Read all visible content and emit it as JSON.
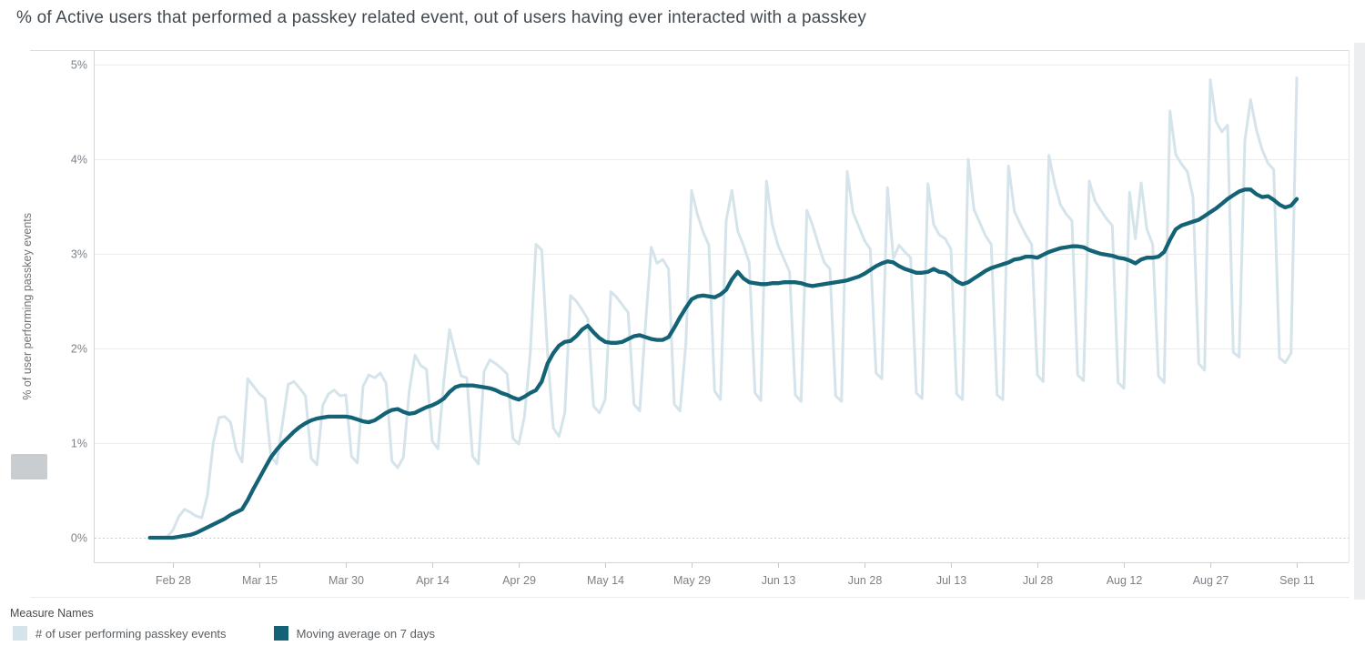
{
  "chart_data": {
    "type": "line",
    "title": "% of Active users that performed a passkey related event, out of users having ever interacted with a passkey",
    "ylabel": "% of user performing passkey events",
    "ylim": [
      0,
      5
    ],
    "grid": "horizontal",
    "y_ticks": [
      {
        "label": "0%",
        "value": 0
      },
      {
        "label": "1%",
        "value": 1
      },
      {
        "label": "2%",
        "value": 2
      },
      {
        "label": "3%",
        "value": 3
      },
      {
        "label": "4%",
        "value": 4
      },
      {
        "label": "5%",
        "value": 5
      }
    ],
    "x_domain": {
      "start": "Feb 24",
      "end": "Sep 11",
      "unit": "day",
      "points": 200
    },
    "x_ticks": [
      {
        "label": "Feb 28",
        "day_index": 4
      },
      {
        "label": "Mar 15",
        "day_index": 19
      },
      {
        "label": "Mar 30",
        "day_index": 34
      },
      {
        "label": "Apr 14",
        "day_index": 49
      },
      {
        "label": "Apr 29",
        "day_index": 64
      },
      {
        "label": "May 14",
        "day_index": 79
      },
      {
        "label": "May 29",
        "day_index": 94
      },
      {
        "label": "Jun 13",
        "day_index": 109
      },
      {
        "label": "Jun 28",
        "day_index": 124
      },
      {
        "label": "Jul 13",
        "day_index": 139
      },
      {
        "label": "Jul 28",
        "day_index": 154
      },
      {
        "label": "Aug 12",
        "day_index": 169
      },
      {
        "label": "Aug 27",
        "day_index": 184
      },
      {
        "label": "Sep 11",
        "day_index": 199
      }
    ],
    "legend": {
      "title": "Measure Names",
      "position": "bottom-left"
    },
    "series": [
      {
        "name": "# of user performing passkey events",
        "color": "#d5e4ea",
        "stroke_width": 3,
        "values": [
          0,
          0,
          0,
          0.01,
          0.08,
          0.22,
          0.3,
          0.27,
          0.23,
          0.21,
          0.45,
          1,
          1.27,
          1.28,
          1.22,
          0.92,
          0.8,
          1.68,
          1.6,
          1.52,
          1.47,
          0.86,
          0.78,
          1.2,
          1.62,
          1.65,
          1.58,
          1.5,
          0.84,
          0.77,
          1.4,
          1.52,
          1.56,
          1.5,
          1.51,
          0.86,
          0.79,
          1.6,
          1.72,
          1.69,
          1.74,
          1.63,
          0.81,
          0.74,
          0.85,
          1.55,
          1.93,
          1.82,
          1.78,
          1.02,
          0.94,
          1.65,
          2.2,
          1.95,
          1.71,
          1.69,
          0.86,
          0.78,
          1.76,
          1.88,
          1.84,
          1.79,
          1.73,
          1.05,
          0.99,
          1.28,
          1.95,
          3.1,
          3.04,
          1.95,
          1.16,
          1.07,
          1.32,
          2.56,
          2.5,
          2.41,
          2.31,
          1.39,
          1.32,
          1.46,
          2.6,
          2.54,
          2.46,
          2.38,
          1.41,
          1.34,
          2.25,
          3.07,
          2.9,
          2.94,
          2.84,
          1.41,
          1.34,
          2.05,
          3.67,
          3.42,
          3.23,
          3.09,
          1.55,
          1.46,
          3.35,
          3.67,
          3.24,
          3.09,
          2.91,
          1.53,
          1.45,
          3.77,
          3.31,
          3.09,
          2.95,
          2.81,
          1.51,
          1.44,
          3.46,
          3.3,
          3.1,
          2.91,
          2.84,
          1.5,
          1.44,
          3.87,
          3.44,
          3.29,
          3.14,
          3.05,
          1.74,
          1.68,
          3.7,
          2.95,
          3.09,
          3.02,
          2.96,
          1.53,
          1.47,
          3.74,
          3.31,
          3.2,
          3.16,
          3.05,
          1.52,
          1.46,
          4,
          3.47,
          3.33,
          3.19,
          3.1,
          1.51,
          1.46,
          3.93,
          3.45,
          3.32,
          3.2,
          3.1,
          1.72,
          1.65,
          4.04,
          3.74,
          3.52,
          3.42,
          3.35,
          1.72,
          1.66,
          3.77,
          3.56,
          3.46,
          3.37,
          3.3,
          1.64,
          1.58,
          3.65,
          3.16,
          3.75,
          3.26,
          3.1,
          1.71,
          1.64,
          4.51,
          4.05,
          3.95,
          3.87,
          3.6,
          1.84,
          1.77,
          4.84,
          4.4,
          4.29,
          4.36,
          1.96,
          1.91,
          4.2,
          4.63,
          4.31,
          4.1,
          3.96,
          3.89,
          1.9,
          1.85,
          1.95,
          4.86
        ]
      },
      {
        "name": "Moving average on 7 days",
        "color": "#146276",
        "stroke_width": 4.3,
        "values": [
          0,
          0,
          0,
          0,
          0,
          0.01,
          0.02,
          0.03,
          0.05,
          0.08,
          0.11,
          0.14,
          0.17,
          0.2,
          0.24,
          0.27,
          0.3,
          0.4,
          0.52,
          0.63,
          0.74,
          0.85,
          0.93,
          1,
          1.06,
          1.12,
          1.17,
          1.21,
          1.24,
          1.26,
          1.27,
          1.28,
          1.28,
          1.28,
          1.28,
          1.27,
          1.25,
          1.23,
          1.22,
          1.24,
          1.28,
          1.32,
          1.35,
          1.36,
          1.33,
          1.31,
          1.32,
          1.35,
          1.38,
          1.4,
          1.43,
          1.47,
          1.54,
          1.59,
          1.61,
          1.61,
          1.61,
          1.6,
          1.59,
          1.58,
          1.56,
          1.53,
          1.51,
          1.48,
          1.46,
          1.49,
          1.53,
          1.56,
          1.65,
          1.84,
          1.95,
          2.03,
          2.07,
          2.08,
          2.13,
          2.2,
          2.24,
          2.17,
          2.11,
          2.07,
          2.06,
          2.06,
          2.07,
          2.1,
          2.13,
          2.14,
          2.12,
          2.1,
          2.09,
          2.09,
          2.12,
          2.22,
          2.33,
          2.43,
          2.52,
          2.55,
          2.56,
          2.55,
          2.54,
          2.57,
          2.62,
          2.73,
          2.81,
          2.74,
          2.7,
          2.69,
          2.68,
          2.68,
          2.69,
          2.69,
          2.7,
          2.7,
          2.7,
          2.69,
          2.67,
          2.66,
          2.67,
          2.68,
          2.69,
          2.7,
          2.71,
          2.72,
          2.74,
          2.76,
          2.79,
          2.83,
          2.87,
          2.9,
          2.92,
          2.91,
          2.87,
          2.84,
          2.82,
          2.8,
          2.8,
          2.81,
          2.84,
          2.81,
          2.8,
          2.76,
          2.71,
          2.68,
          2.7,
          2.74,
          2.78,
          2.82,
          2.85,
          2.87,
          2.89,
          2.91,
          2.94,
          2.95,
          2.97,
          2.97,
          2.96,
          2.99,
          3.02,
          3.04,
          3.06,
          3.07,
          3.08,
          3.08,
          3.07,
          3.04,
          3.02,
          3,
          2.99,
          2.98,
          2.96,
          2.95,
          2.93,
          2.9,
          2.94,
          2.96,
          2.96,
          2.97,
          3.02,
          3.15,
          3.26,
          3.3,
          3.32,
          3.34,
          3.36,
          3.4,
          3.44,
          3.48,
          3.53,
          3.58,
          3.62,
          3.66,
          3.68,
          3.68,
          3.63,
          3.6,
          3.61,
          3.57,
          3.52,
          3.49,
          3.51,
          3.58
        ]
      }
    ]
  }
}
